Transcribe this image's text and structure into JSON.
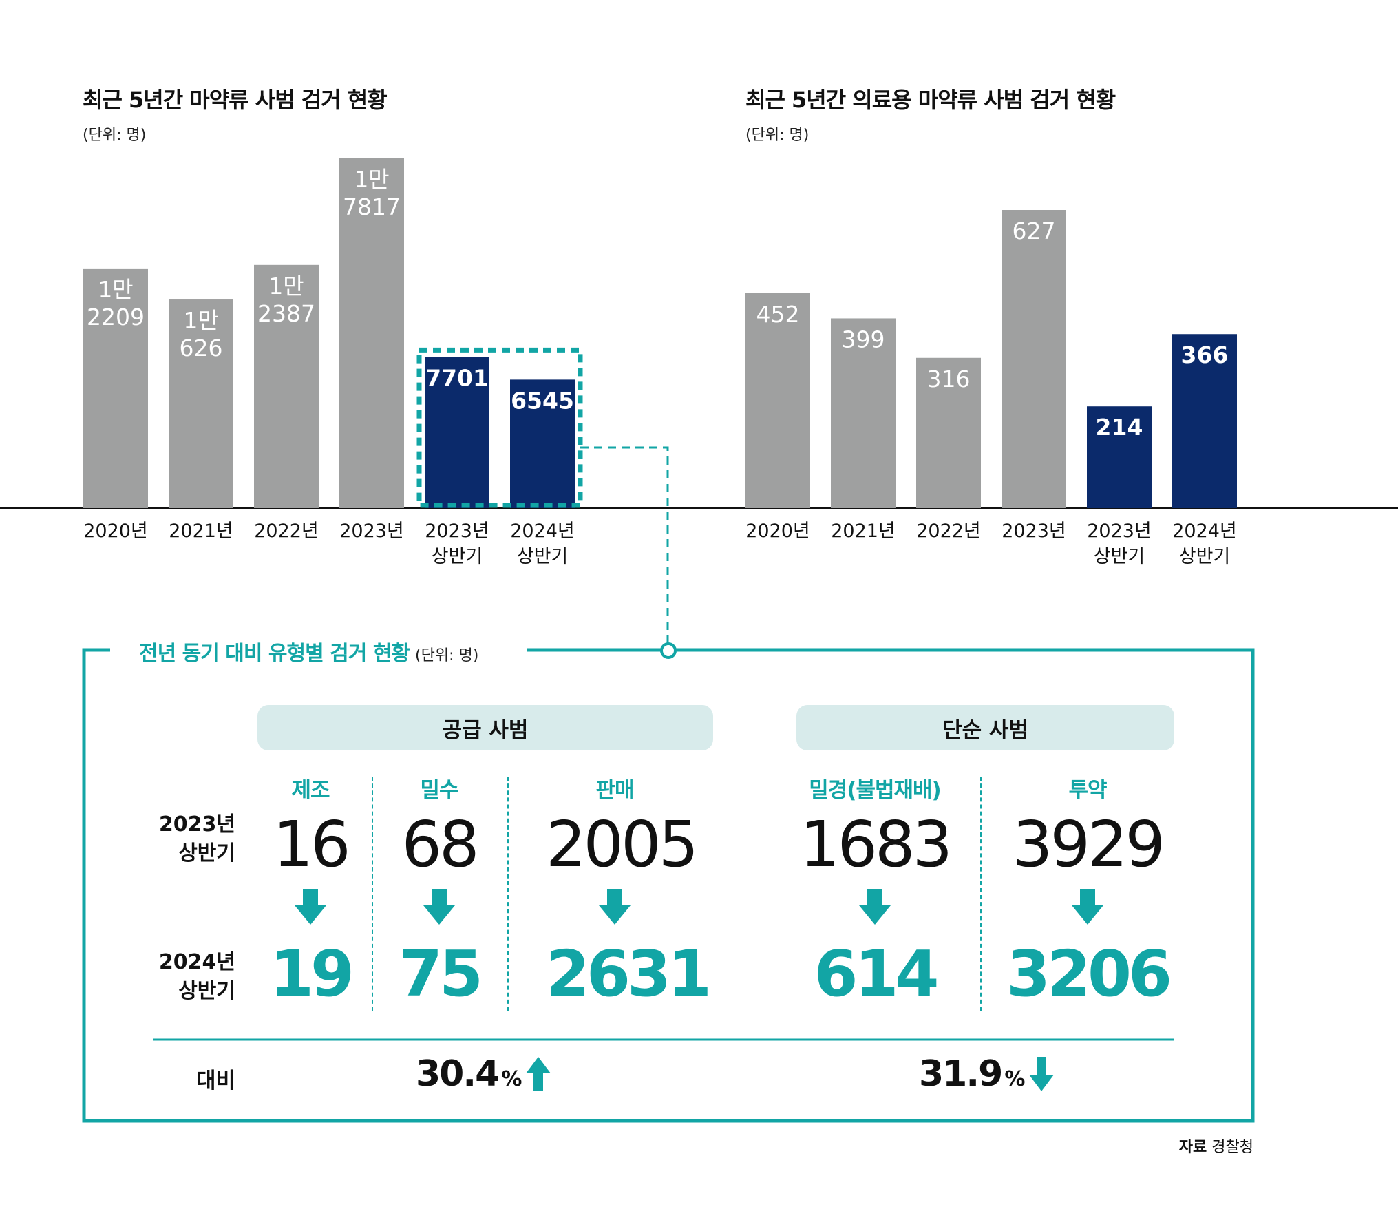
{
  "chart_data": [
    {
      "type": "bar",
      "title": "최근 5년간 마약류 사범 검거 현황",
      "unit": "(단위: 명)",
      "categories": [
        "2020년",
        "2021년",
        "2022년",
        "2023년",
        "2023년\n상반기",
        "2024년\n상반기"
      ],
      "values": [
        12209,
        10626,
        12387,
        17817,
        7701,
        6545
      ],
      "data_labels": [
        "1만\n2209",
        "1만\n626",
        "1만\n2387",
        "1만\n7817",
        "7701",
        "6545"
      ],
      "highlighted": [
        false,
        false,
        false,
        false,
        true,
        true
      ],
      "ylim": [
        0,
        20000
      ]
    },
    {
      "type": "bar",
      "title": "최근 5년간 의료용 마약류 사범 검거 현황",
      "unit": "(단위: 명)",
      "categories": [
        "2020년",
        "2021년",
        "2022년",
        "2023년",
        "2023년\n상반기",
        "2024년\n상반기"
      ],
      "values": [
        452,
        399,
        316,
        627,
        214,
        366
      ],
      "data_labels": [
        "452",
        "399",
        "316",
        "627",
        "214",
        "366"
      ],
      "highlighted": [
        false,
        false,
        false,
        false,
        true,
        true
      ],
      "ylim": [
        0,
        700
      ]
    },
    {
      "type": "table",
      "title": "전년 동기 대비 유형별 검거 현황",
      "unit": "(단위: 명)",
      "groups": [
        {
          "name": "공급 사범",
          "categories": [
            "제조",
            "밀수",
            "판매"
          ],
          "h1_2023": [
            16,
            68,
            2005
          ],
          "h1_2024": [
            19,
            75,
            2631
          ],
          "change": "30.4",
          "direction": "up"
        },
        {
          "name": "단순 사범",
          "categories": [
            "밀경(불법재배)",
            "투약"
          ],
          "h1_2023": [
            1683,
            3929
          ],
          "h1_2024": [
            614,
            3206
          ],
          "change": "31.9",
          "direction": "down"
        }
      ]
    }
  ],
  "colors": {
    "gray": "#9fa0a0",
    "navy": "#0b2a6b",
    "teal": "#12a5a5",
    "pill": "#d8ebeb"
  },
  "box": {
    "title": "전년 동기 대비 유형별 검거 현황",
    "unit": "(단위: 명)",
    "row_2023": [
      "2023년",
      "상반기"
    ],
    "row_2024": [
      "2024년",
      "상반기"
    ],
    "compare_label": "대비",
    "pct_sign": "%",
    "groups": [
      {
        "name": "공급 사범",
        "cats": [
          "제조",
          "밀수",
          "판매"
        ],
        "v23": [
          "16",
          "68",
          "2005"
        ],
        "v24": [
          "19",
          "75",
          "2631"
        ],
        "change": "30.4"
      },
      {
        "name": "단순 사범",
        "cats": [
          "밀경(불법재배)",
          "투약"
        ],
        "v23": [
          "1683",
          "3929"
        ],
        "v24": [
          "614",
          "3206"
        ],
        "change": "31.9"
      }
    ]
  },
  "source": {
    "label": "자료",
    "text": "경찰청"
  }
}
